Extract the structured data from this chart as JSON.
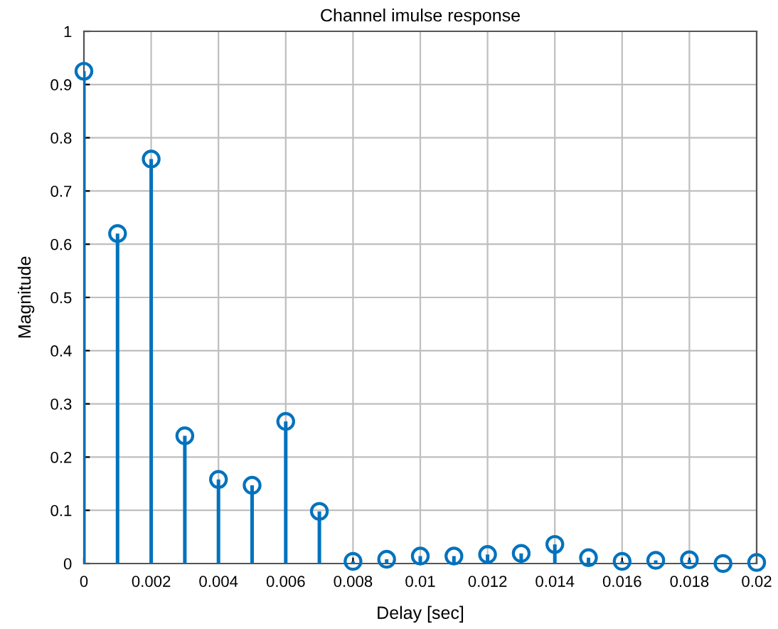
{
  "chart_data": {
    "type": "lollipop",
    "title": "Channel imulse response",
    "xlabel": "Delay [sec]",
    "ylabel": "Magnitude",
    "x": [
      0,
      0.001,
      0.002,
      0.003,
      0.004,
      0.005,
      0.006,
      0.007,
      0.008,
      0.009,
      0.01,
      0.011,
      0.012,
      0.013,
      0.014,
      0.015,
      0.016,
      0.017,
      0.018,
      0.019,
      0.02
    ],
    "series": [
      {
        "color": "#0072bd",
        "values": [
          0.925,
          0.62,
          0.76,
          0.24,
          0.158,
          0.147,
          0.267,
          0.098,
          0.004,
          0.008,
          0.014,
          0.014,
          0.017,
          0.019,
          0.036,
          0.011,
          0.004,
          0.006,
          0.007,
          0.0,
          0.002
        ]
      }
    ],
    "marker": "circle",
    "xlim": [
      0,
      0.02
    ],
    "ylim": [
      0,
      1
    ],
    "xticks": [
      0,
      0.002,
      0.004,
      0.006,
      0.008,
      0.01,
      0.012,
      0.014,
      0.016,
      0.018,
      0.02
    ],
    "yticks": [
      0,
      0.1,
      0.2,
      0.3,
      0.4,
      0.5,
      0.6,
      0.7,
      0.8,
      0.9,
      1
    ],
    "grid": true
  }
}
